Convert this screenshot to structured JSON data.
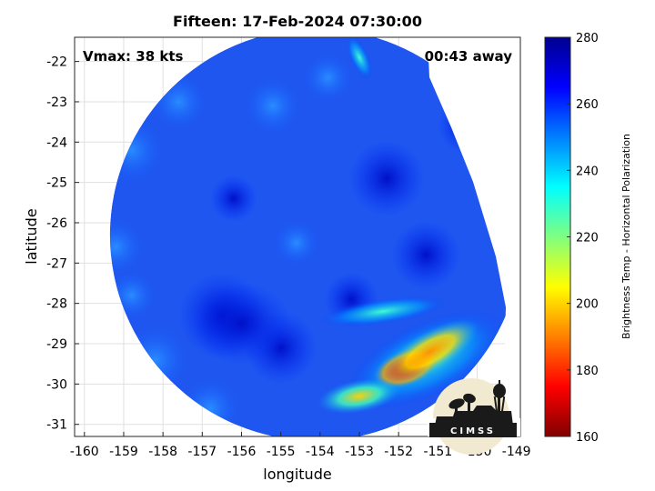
{
  "chart_data": {
    "type": "heatmap",
    "title": "Fifteen: 17-Feb-2024 07:30:00",
    "xlabel": "longitude",
    "ylabel": "latitude",
    "xlim": [
      -160.25,
      -148.9
    ],
    "ylim": [
      -31.3,
      -21.4
    ],
    "xticks": [
      -160,
      -159,
      -158,
      -157,
      -156,
      -155,
      -154,
      -153,
      -152,
      -151,
      -150,
      -149
    ],
    "yticks": [
      -22,
      -23,
      -24,
      -25,
      -26,
      -27,
      -28,
      -29,
      -30,
      -31
    ],
    "grid": true,
    "annotations": {
      "vmax": "Vmax: 38 kts",
      "distance": "00:43 away"
    },
    "colorbar": {
      "label": "Brightness Temp - Horizontal Polarization",
      "range": [
        160,
        280
      ],
      "ticks": [
        160,
        180,
        200,
        220,
        240,
        260,
        280
      ],
      "colormap": "jet"
    },
    "swath": {
      "center": [
        -154.1,
        -26.3
      ],
      "radius_deg": 5.25,
      "background_value": 262
    },
    "features": [
      {
        "name": "cold-core",
        "lon": -151.8,
        "lat": -29.6,
        "value": 175
      },
      {
        "name": "cold-band",
        "lon": -151.2,
        "lat": -29.2,
        "value": 190
      },
      {
        "name": "cold-tail",
        "lon": -153.0,
        "lat": -30.3,
        "value": 205
      },
      {
        "name": "north-streak",
        "lon": -153.0,
        "lat": -21.9,
        "value": 222
      },
      {
        "name": "warm-core",
        "lon": -156.0,
        "lat": -28.5,
        "value": 272
      }
    ],
    "logo": "CIMSS"
  }
}
